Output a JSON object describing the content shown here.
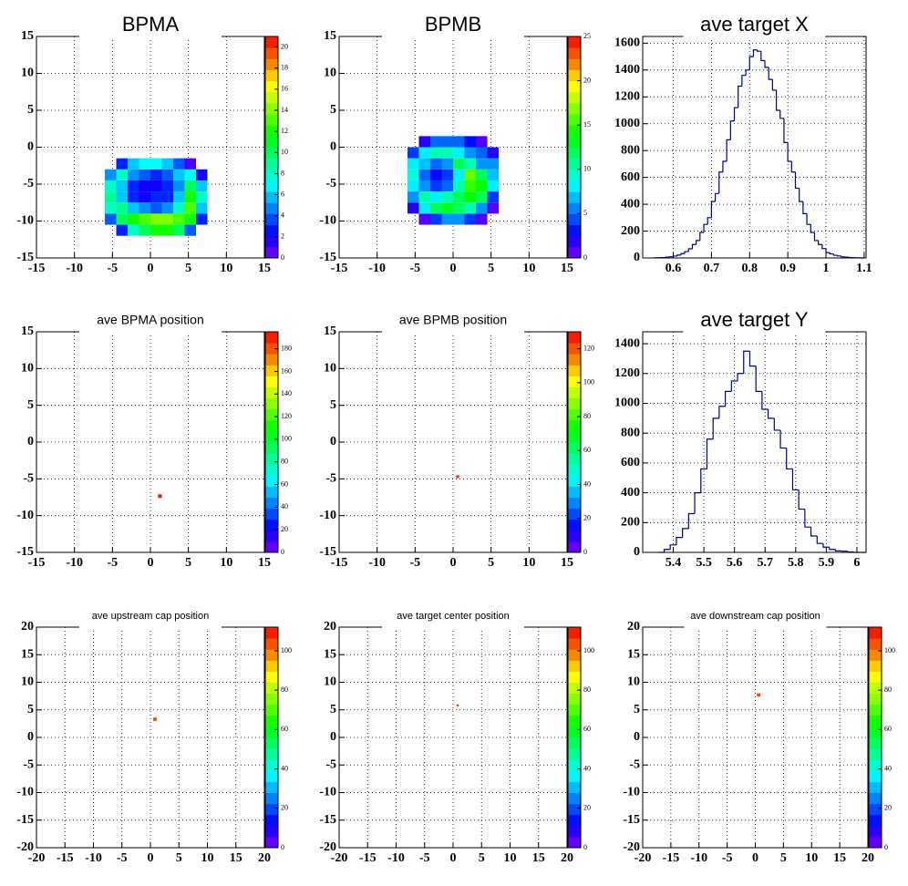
{
  "chart_data": [
    {
      "type": "heatmap",
      "title": "BPMA",
      "xlim": [
        -15,
        15
      ],
      "ylim": [
        -15,
        15
      ],
      "xticks": [
        -15,
        -10,
        -5,
        0,
        5,
        10,
        15
      ],
      "yticks": [
        -15,
        -10,
        -5,
        0,
        5,
        10,
        15
      ],
      "zlim": [
        0,
        21
      ],
      "zticks": [
        0,
        2,
        4,
        6,
        8,
        10,
        12,
        14,
        16,
        18,
        20
      ],
      "grid": true,
      "xbins": [
        -6,
        -4.5,
        -3,
        -1.5,
        0,
        1.5,
        3,
        4.5,
        6,
        7.5
      ],
      "ybins": [
        -12,
        -10.5,
        -9,
        -7.5,
        -6,
        -4.5,
        -3,
        -1.5
      ],
      "z": [
        [
          0,
          3,
          8,
          10,
          12,
          12,
          10,
          4,
          0
        ],
        [
          4,
          10,
          12,
          13,
          14,
          14,
          13,
          12,
          3
        ],
        [
          8,
          9,
          6,
          5,
          4,
          5,
          8,
          13,
          6
        ],
        [
          9,
          6,
          3,
          2,
          3,
          3,
          6,
          12,
          8
        ],
        [
          8,
          6,
          3,
          2,
          2,
          3,
          5,
          10,
          6
        ],
        [
          5,
          8,
          5,
          4,
          3,
          4,
          6,
          7,
          2
        ],
        [
          0,
          3,
          6,
          7,
          7,
          6,
          4,
          1,
          0
        ]
      ]
    },
    {
      "type": "heatmap",
      "title": "BPMB",
      "xlim": [
        -15,
        15
      ],
      "ylim": [
        -15,
        15
      ],
      "xticks": [
        -15,
        -10,
        -5,
        0,
        5,
        10,
        15
      ],
      "yticks": [
        -15,
        -10,
        -5,
        0,
        5,
        10,
        15
      ],
      "zlim": [
        0,
        25
      ],
      "zticks": [
        0,
        5,
        10,
        15,
        20,
        25
      ],
      "grid": true,
      "xbins": [
        -6,
        -4.5,
        -3,
        -1.5,
        0,
        1.5,
        3,
        4.5,
        6
      ],
      "ybins": [
        -10.5,
        -9,
        -7.5,
        -6,
        -4.5,
        -3,
        -1.5,
        0,
        1.5
      ],
      "z": [
        [
          0,
          1,
          4,
          6,
          6,
          4,
          1,
          0
        ],
        [
          2,
          8,
          12,
          13,
          12,
          10,
          6,
          1
        ],
        [
          6,
          10,
          8,
          10,
          12,
          14,
          12,
          4
        ],
        [
          8,
          6,
          4,
          5,
          10,
          15,
          14,
          8
        ],
        [
          9,
          5,
          3,
          4,
          8,
          16,
          12,
          7
        ],
        [
          8,
          7,
          5,
          6,
          12,
          10,
          6,
          6
        ],
        [
          4,
          8,
          10,
          10,
          8,
          6,
          5,
          2
        ],
        [
          0,
          2,
          5,
          5,
          5,
          3,
          1,
          0
        ]
      ]
    },
    {
      "type": "histogram",
      "title": "ave target X",
      "color": "#00008b",
      "xlim": [
        0.52,
        1.105
      ],
      "ylim": [
        0,
        1650
      ],
      "xticks": [
        0.6,
        0.7,
        0.8,
        0.9,
        1,
        1.1
      ],
      "yticks": [
        0,
        200,
        400,
        600,
        800,
        1000,
        1200,
        1400,
        1600
      ],
      "grid": true,
      "bins": [
        0.55,
        0.56,
        0.57,
        0.58,
        0.59,
        0.6,
        0.61,
        0.62,
        0.63,
        0.64,
        0.65,
        0.66,
        0.67,
        0.68,
        0.69,
        0.7,
        0.71,
        0.72,
        0.73,
        0.74,
        0.75,
        0.76,
        0.77,
        0.78,
        0.79,
        0.8,
        0.81,
        0.82,
        0.83,
        0.84,
        0.85,
        0.86,
        0.87,
        0.88,
        0.89,
        0.9,
        0.91,
        0.92,
        0.93,
        0.94,
        0.95,
        0.96,
        0.97,
        0.98,
        0.99,
        1.0,
        1.01,
        1.02,
        1.03,
        1.04,
        1.05,
        1.06,
        1.07,
        1.08,
        1.09,
        1.1
      ],
      "values": [
        1,
        2,
        3,
        6,
        9,
        14,
        21,
        32,
        47,
        68,
        100,
        130,
        190,
        250,
        300,
        420,
        480,
        640,
        720,
        880,
        1020,
        1120,
        1280,
        1360,
        1400,
        1500,
        1550,
        1540,
        1470,
        1420,
        1330,
        1250,
        1100,
        1040,
        860,
        720,
        640,
        520,
        420,
        330,
        250,
        190,
        130,
        100,
        70,
        40,
        30,
        20,
        15,
        8,
        6,
        3,
        2,
        1,
        0
      ]
    },
    {
      "type": "heatmap",
      "title": "ave BPMA position",
      "xlim": [
        -15,
        15
      ],
      "ylim": [
        -15,
        15
      ],
      "xticks": [
        -15,
        -10,
        -5,
        0,
        5,
        10,
        15
      ],
      "yticks": [
        -15,
        -10,
        -5,
        0,
        5,
        10,
        15
      ],
      "zlim": [
        0,
        195
      ],
      "zticks": [
        0,
        20,
        40,
        60,
        80,
        100,
        120,
        140,
        160,
        180
      ],
      "grid": true,
      "xbins": [
        1.0,
        1.5
      ],
      "ybins": [
        -7.6,
        -7.1
      ],
      "z": [
        [
          190
        ]
      ]
    },
    {
      "type": "heatmap",
      "title": "ave BPMB position",
      "xlim": [
        -15,
        15
      ],
      "ylim": [
        -15,
        15
      ],
      "xticks": [
        -15,
        -10,
        -5,
        0,
        5,
        10,
        15
      ],
      "yticks": [
        -15,
        -10,
        -5,
        0,
        5,
        10,
        15
      ],
      "zlim": [
        0,
        130
      ],
      "zticks": [
        0,
        20,
        40,
        60,
        80,
        100,
        120
      ],
      "grid": true,
      "xbins": [
        0.4,
        0.8
      ],
      "ybins": [
        -4.9,
        -4.5
      ],
      "z": [
        [
          125
        ]
      ]
    },
    {
      "type": "histogram",
      "title": "ave target Y",
      "color": "#00008b",
      "xlim": [
        5.3,
        6.03
      ],
      "ylim": [
        0,
        1480
      ],
      "xticks": [
        5.4,
        5.5,
        5.6,
        5.7,
        5.8,
        5.9,
        6
      ],
      "yticks": [
        0,
        200,
        400,
        600,
        800,
        1000,
        1200,
        1400
      ],
      "grid": true,
      "bins": [
        5.35,
        5.37,
        5.39,
        5.41,
        5.43,
        5.45,
        5.47,
        5.49,
        5.51,
        5.53,
        5.55,
        5.57,
        5.59,
        5.61,
        5.63,
        5.65,
        5.67,
        5.69,
        5.71,
        5.73,
        5.75,
        5.77,
        5.79,
        5.81,
        5.83,
        5.85,
        5.87,
        5.89,
        5.91,
        5.93,
        5.95,
        5.97,
        5.99,
        6.01,
        6.03
      ],
      "values": [
        0,
        20,
        50,
        100,
        160,
        260,
        400,
        560,
        760,
        900,
        980,
        1080,
        1150,
        1200,
        1350,
        1250,
        1080,
        960,
        900,
        820,
        700,
        560,
        420,
        290,
        170,
        110,
        60,
        35,
        20,
        10,
        8,
        3,
        0,
        0
      ]
    },
    {
      "type": "heatmap",
      "title": "ave upstream cap position",
      "xlim": [
        -20,
        20
      ],
      "ylim": [
        -20,
        20
      ],
      "xticks": [
        -20,
        -15,
        -10,
        -5,
        0,
        5,
        10,
        15,
        20
      ],
      "yticks": [
        -20,
        -15,
        -10,
        -5,
        0,
        5,
        10,
        15,
        20
      ],
      "zlim": [
        0,
        112
      ],
      "zticks": [
        0,
        20,
        40,
        60,
        80,
        100
      ],
      "grid": true,
      "xbins": [
        0.5,
        1.1
      ],
      "ybins": [
        3.0,
        3.6
      ],
      "z": [
        [
          105
        ]
      ]
    },
    {
      "type": "heatmap",
      "title": "ave target center  position",
      "xlim": [
        -20,
        20
      ],
      "ylim": [
        -20,
        20
      ],
      "xticks": [
        -20,
        -15,
        -10,
        -5,
        0,
        5,
        10,
        15,
        20
      ],
      "yticks": [
        -20,
        -15,
        -10,
        -5,
        0,
        5,
        10,
        15,
        20
      ],
      "zlim": [
        0,
        112
      ],
      "zticks": [
        0,
        20,
        40,
        60,
        80,
        100
      ],
      "grid": true,
      "xbins": [
        0.6,
        1.0
      ],
      "ybins": [
        5.6,
        6.0
      ],
      "z": [
        [
          105
        ]
      ]
    },
    {
      "type": "heatmap",
      "title": "ave downstream cap position",
      "xlim": [
        -20,
        20
      ],
      "ylim": [
        -20,
        20
      ],
      "xticks": [
        -20,
        -15,
        -10,
        -5,
        0,
        5,
        10,
        15,
        20
      ],
      "yticks": [
        -20,
        -15,
        -10,
        -5,
        0,
        5,
        10,
        15,
        20
      ],
      "zlim": [
        0,
        112
      ],
      "zticks": [
        0,
        20,
        40,
        60,
        80,
        100
      ],
      "grid": true,
      "xbins": [
        0.3,
        0.9
      ],
      "ybins": [
        7.4,
        8.0
      ],
      "z": [
        [
          105
        ]
      ]
    }
  ]
}
